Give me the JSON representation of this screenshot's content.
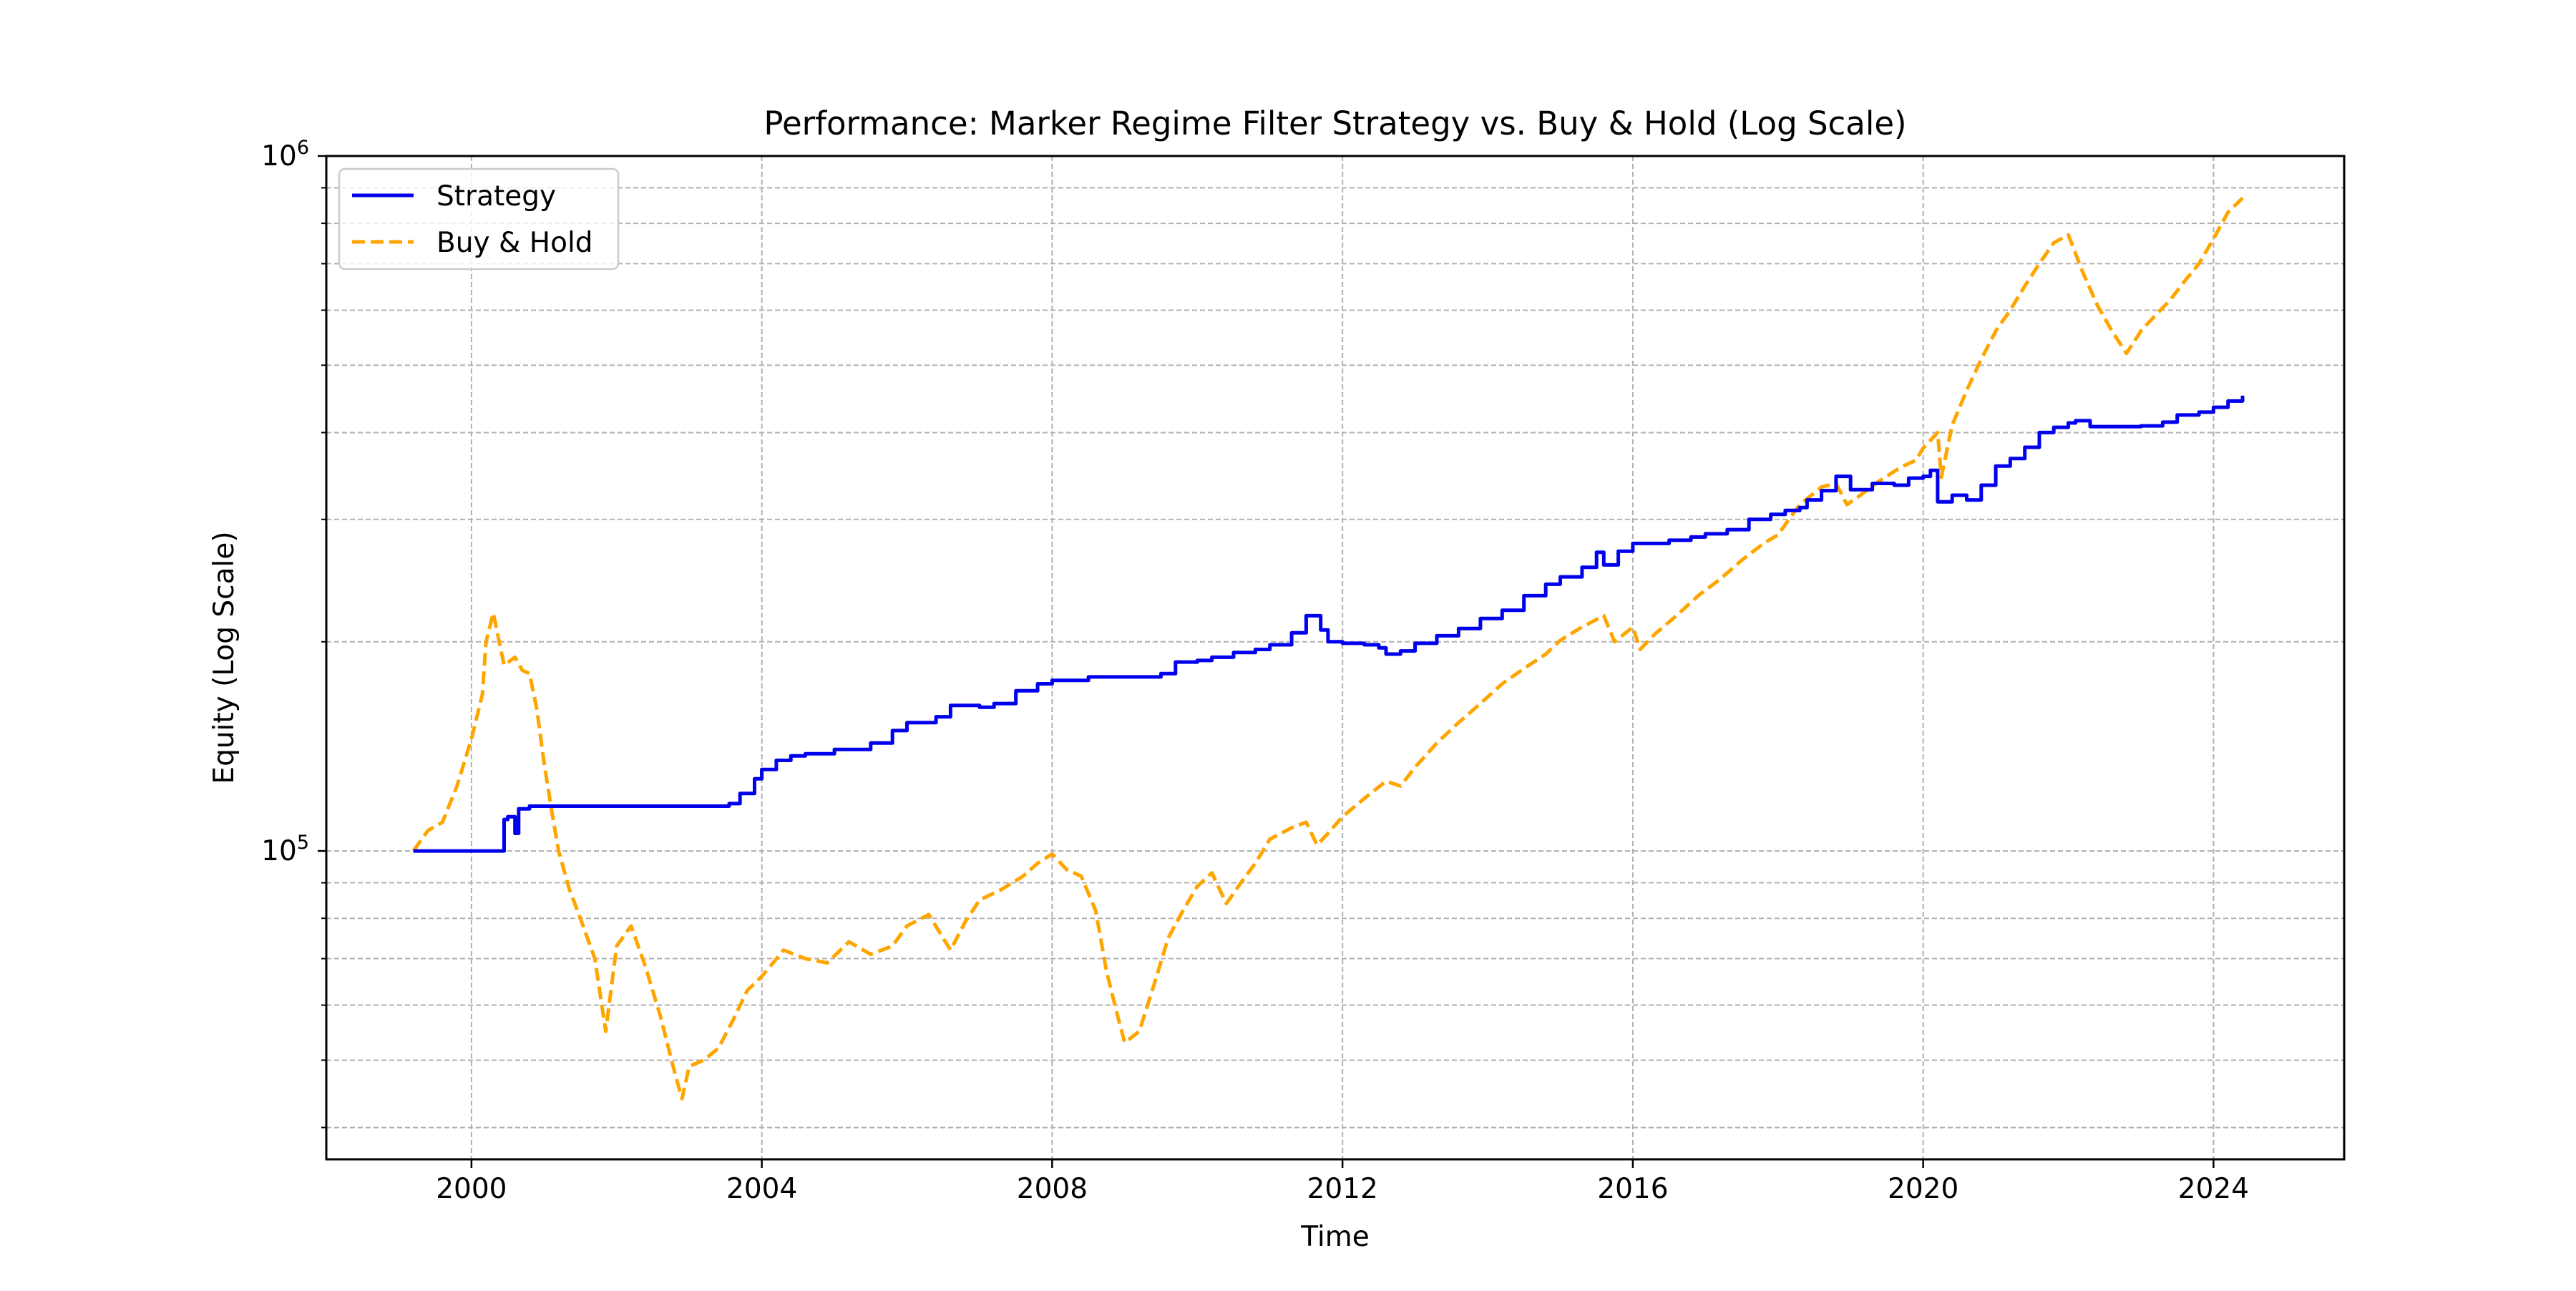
{
  "chart_data": {
    "type": "line",
    "title": "Performance: Marker Regime Filter Strategy vs. Buy & Hold (Log Scale)",
    "xlabel": "Time",
    "ylabel": "Equity (Log Scale)",
    "yscale": "log",
    "xlim": [
      1998.0,
      2025.8
    ],
    "ylim": [
      36000,
      1000000
    ],
    "grid": true,
    "legend_position": "upper-left",
    "x_ticks": [
      2000,
      2004,
      2008,
      2012,
      2016,
      2020,
      2024
    ],
    "x_tick_labels": [
      "2000",
      "2004",
      "2008",
      "2012",
      "2016",
      "2020",
      "2024"
    ],
    "y_major_ticks": [
      {
        "value": 100000,
        "base": "10",
        "exp": "5"
      },
      {
        "value": 1000000,
        "base": "10",
        "exp": "6"
      }
    ],
    "y_minor_ticks": [
      40000,
      50000,
      60000,
      70000,
      80000,
      90000,
      200000,
      300000,
      400000,
      500000,
      600000,
      700000,
      800000,
      900000
    ],
    "series": [
      {
        "name": "Strategy",
        "color": "#0000ee",
        "style": "solid",
        "x": [
          1999.2,
          2000.4,
          2000.45,
          2000.5,
          2000.6,
          2000.65,
          2000.8,
          2001.0,
          2003.5,
          2003.55,
          2003.7,
          2003.9,
          2004.0,
          2004.2,
          2004.4,
          2004.6,
          2005.0,
          2005.5,
          2005.8,
          2006.0,
          2006.4,
          2006.6,
          2007.0,
          2007.2,
          2007.5,
          2007.8,
          2008.0,
          2008.5,
          2009.0,
          2009.5,
          2009.7,
          2010.0,
          2010.2,
          2010.5,
          2010.8,
          2011.0,
          2011.3,
          2011.5,
          2011.7,
          2011.8,
          2012.0,
          2012.3,
          2012.5,
          2012.6,
          2012.8,
          2013.0,
          2013.3,
          2013.6,
          2013.9,
          2014.2,
          2014.5,
          2014.8,
          2015.0,
          2015.3,
          2015.5,
          2015.6,
          2015.8,
          2016.0,
          2016.5,
          2016.8,
          2017.0,
          2017.3,
          2017.6,
          2017.9,
          2018.1,
          2018.3,
          2018.4,
          2018.6,
          2018.8,
          2019.0,
          2019.3,
          2019.6,
          2019.8,
          2020.0,
          2020.1,
          2020.2,
          2020.4,
          2020.6,
          2020.8,
          2021.0,
          2021.2,
          2021.4,
          2021.6,
          2021.8,
          2022.0,
          2022.1,
          2022.3,
          2022.6,
          2023.0,
          2023.3,
          2023.5,
          2023.8,
          2024.0,
          2024.2,
          2024.4
        ],
        "y": [
          100000,
          100000,
          111000,
          112000,
          106000,
          115000,
          116000,
          116000,
          116000,
          117000,
          121000,
          127000,
          131000,
          135000,
          137000,
          138000,
          140000,
          143000,
          149000,
          153000,
          156000,
          162000,
          161000,
          163000,
          170000,
          174000,
          176000,
          178000,
          178000,
          180000,
          187000,
          188000,
          190000,
          193000,
          195000,
          198000,
          206000,
          218000,
          208000,
          200000,
          199000,
          198000,
          196000,
          192000,
          194000,
          199000,
          204000,
          209000,
          216000,
          222000,
          233000,
          242000,
          248000,
          256000,
          269000,
          258000,
          270000,
          277000,
          280000,
          283000,
          286000,
          290000,
          300000,
          305000,
          309000,
          312000,
          320000,
          330000,
          346000,
          331000,
          338000,
          336000,
          344000,
          346000,
          353000,
          318000,
          325000,
          320000,
          336000,
          358000,
          367000,
          381000,
          400000,
          407000,
          413000,
          416000,
          408000,
          408000,
          409000,
          414000,
          424000,
          428000,
          435000,
          444000,
          452000
        ]
      },
      {
        "name": "Buy & Hold",
        "color": "#ffa500",
        "style": "dashed",
        "x": [
          1999.2,
          1999.4,
          1999.6,
          1999.8,
          2000.0,
          2000.15,
          2000.2,
          2000.3,
          2000.45,
          2000.6,
          2000.7,
          2000.8,
          2000.9,
          2001.0,
          2001.1,
          2001.2,
          2001.35,
          2001.5,
          2001.7,
          2001.85,
          2002.0,
          2002.2,
          2002.4,
          2002.6,
          2002.8,
          2002.9,
          2003.0,
          2003.2,
          2003.4,
          2003.6,
          2003.8,
          2004.0,
          2004.3,
          2004.6,
          2004.9,
          2005.2,
          2005.5,
          2005.8,
          2006.0,
          2006.3,
          2006.6,
          2006.8,
          2007.0,
          2007.3,
          2007.6,
          2007.8,
          2008.0,
          2008.2,
          2008.4,
          2008.6,
          2008.75,
          2008.9,
          2009.0,
          2009.2,
          2009.4,
          2009.6,
          2009.8,
          2010.0,
          2010.2,
          2010.4,
          2010.6,
          2010.8,
          2011.0,
          2011.3,
          2011.5,
          2011.65,
          2011.8,
          2012.0,
          2012.3,
          2012.6,
          2012.8,
          2013.0,
          2013.3,
          2013.6,
          2013.9,
          2014.2,
          2014.5,
          2014.8,
          2015.0,
          2015.3,
          2015.6,
          2015.75,
          2016.0,
          2016.1,
          2016.3,
          2016.6,
          2016.9,
          2017.2,
          2017.5,
          2017.8,
          2018.0,
          2018.15,
          2018.3,
          2018.6,
          2018.8,
          2018.95,
          2019.1,
          2019.4,
          2019.7,
          2019.9,
          2020.0,
          2020.2,
          2020.25,
          2020.4,
          2020.6,
          2020.8,
          2021.0,
          2021.2,
          2021.4,
          2021.6,
          2021.8,
          2022.0,
          2022.2,
          2022.4,
          2022.6,
          2022.8,
          2023.0,
          2023.2,
          2023.4,
          2023.6,
          2023.8,
          2024.0,
          2024.2,
          2024.4
        ],
        "y": [
          100000,
          107000,
          110000,
          124000,
          145000,
          168000,
          200000,
          220000,
          185000,
          190000,
          182000,
          180000,
          160000,
          134000,
          115000,
          100000,
          88000,
          80000,
          70000,
          55000,
          73000,
          78000,
          68000,
          58000,
          48000,
          44000,
          49000,
          50000,
          52000,
          57000,
          63000,
          66000,
          72000,
          70000,
          69000,
          74000,
          71000,
          73000,
          78000,
          81000,
          72000,
          79000,
          85000,
          88000,
          92000,
          96000,
          99000,
          94000,
          92000,
          82000,
          67000,
          58000,
          53000,
          55000,
          64000,
          75000,
          82000,
          89000,
          93000,
          84000,
          90000,
          96000,
          104000,
          108000,
          110000,
          102000,
          106000,
          112000,
          119000,
          126000,
          124000,
          132000,
          143000,
          153000,
          163000,
          174000,
          183000,
          192000,
          201000,
          210000,
          218000,
          200000,
          210000,
          195000,
          205000,
          218000,
          233000,
          246000,
          262000,
          277000,
          285000,
          300000,
          315000,
          334000,
          338000,
          315000,
          323000,
          341000,
          357000,
          365000,
          380000,
          400000,
          345000,
          410000,
          460000,
          510000,
          560000,
          600000,
          650000,
          700000,
          750000,
          770000,
          680000,
          610000,
          560000,
          520000,
          560000,
          590000,
          620000,
          660000,
          700000,
          760000,
          830000,
          870000
        ]
      }
    ]
  }
}
